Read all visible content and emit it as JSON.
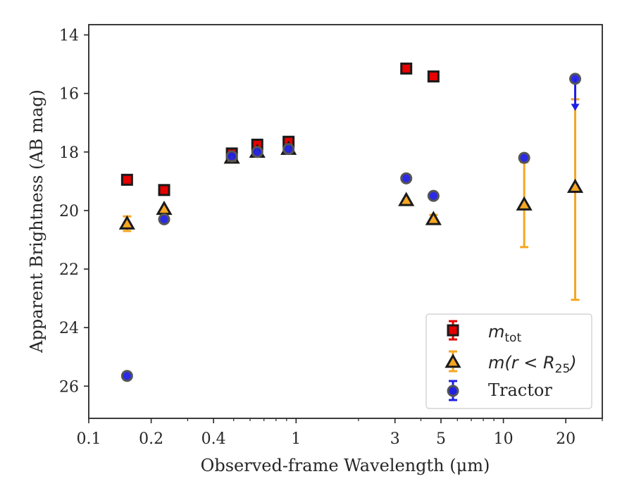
{
  "chart_data": {
    "type": "scatter",
    "xlabel": "Observed-frame Wavelength (μm)",
    "ylabel": "Apparent Brightness (AB mag)",
    "x_scale": "log",
    "xlim": [
      0.1,
      30
    ],
    "ylim": [
      27.1,
      13.65
    ],
    "y_inverted": true,
    "x_ticks": [
      {
        "value": 0.1,
        "label": "0.1"
      },
      {
        "value": 0.2,
        "label": "0.2"
      },
      {
        "value": 0.4,
        "label": "0.4"
      },
      {
        "value": 1,
        "label": "1"
      },
      {
        "value": 3,
        "label": "3"
      },
      {
        "value": 5,
        "label": "5"
      },
      {
        "value": 10,
        "label": "10"
      },
      {
        "value": 20,
        "label": "20"
      }
    ],
    "x_minor_ticks": [
      0.3,
      0.5,
      0.6,
      0.7,
      0.8,
      0.9,
      2,
      4,
      6,
      7,
      8,
      9,
      30
    ],
    "y_ticks": [
      {
        "value": 14,
        "label": "14"
      },
      {
        "value": 16,
        "label": "16"
      },
      {
        "value": 18,
        "label": "18"
      },
      {
        "value": 20,
        "label": "20"
      },
      {
        "value": 22,
        "label": "22"
      },
      {
        "value": 24,
        "label": "24"
      },
      {
        "value": 26,
        "label": "26"
      }
    ],
    "grid": false,
    "legend_position": "lower-right",
    "series": [
      {
        "name": "m_tot",
        "marker": "square",
        "color": "#e60000",
        "edge": "#1a1a1a",
        "points": [
          {
            "x": 0.153,
            "y": 18.95
          },
          {
            "x": 0.231,
            "y": 19.3
          },
          {
            "x": 0.49,
            "y": 18.05
          },
          {
            "x": 0.65,
            "y": 17.75
          },
          {
            "x": 0.92,
            "y": 17.65
          },
          {
            "x": 3.4,
            "y": 15.15
          },
          {
            "x": 4.6,
            "y": 15.42
          }
        ]
      },
      {
        "name": "m(r < R25)",
        "marker": "triangle",
        "color": "#f5a623",
        "edge": "#1a1a1a",
        "points": [
          {
            "x": 0.153,
            "y": 20.45,
            "err": 0.25
          },
          {
            "x": 0.231,
            "y": 19.95
          },
          {
            "x": 0.49,
            "y": 18.2
          },
          {
            "x": 0.65,
            "y": 18.0
          },
          {
            "x": 0.92,
            "y": 17.9
          },
          {
            "x": 3.4,
            "y": 19.65
          },
          {
            "x": 4.6,
            "y": 20.3,
            "err": 0.15
          },
          {
            "x": 12.6,
            "y": 19.8,
            "err_low": 1.45,
            "err_high": 1.45
          },
          {
            "x": 22.2,
            "y": 19.2,
            "err_low": 3.85,
            "err_high": 3.0
          }
        ]
      },
      {
        "name": "Tractor",
        "marker": "circle",
        "color": "#1f1fe6",
        "edge": "#555555",
        "points": [
          {
            "x": 0.153,
            "y": 25.65
          },
          {
            "x": 0.231,
            "y": 20.3
          },
          {
            "x": 0.49,
            "y": 18.15
          },
          {
            "x": 0.65,
            "y": 18.0
          },
          {
            "x": 0.92,
            "y": 17.9
          },
          {
            "x": 3.4,
            "y": 18.9
          },
          {
            "x": 4.6,
            "y": 19.5
          },
          {
            "x": 12.6,
            "y": 18.2
          },
          {
            "x": 22.2,
            "y": 15.5,
            "upper_limit": true,
            "limit_to": 16.45
          }
        ]
      }
    ]
  },
  "legend": {
    "items": [
      {
        "label_main": "m",
        "label_sub": "tot",
        "label_rest": ""
      },
      {
        "label_main": "m(r < R",
        "label_sub": "25",
        "label_rest": ")"
      },
      {
        "label_main": "Tractor",
        "label_sub": "",
        "label_rest": ""
      }
    ]
  }
}
